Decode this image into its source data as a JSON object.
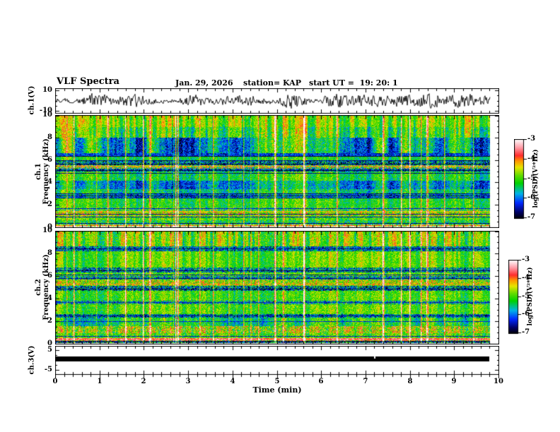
{
  "header": {
    "title": "VLF Spectra",
    "date": "Jan. 29, 2026",
    "station": "station= KAP",
    "start_ut": "start UT =  19: 20: 1"
  },
  "axes": {
    "xlabel": "Time (min)",
    "xticks": [
      0,
      1,
      2,
      3,
      4,
      5,
      6,
      7,
      8,
      9,
      10
    ],
    "x_minor_step_min": 0.2
  },
  "colormap": {
    "range": [
      -7,
      -3
    ],
    "stops": [
      [
        0,
        "#000000"
      ],
      [
        0.08,
        "#000060"
      ],
      [
        0.2,
        "#0028ff"
      ],
      [
        0.32,
        "#00b4e6"
      ],
      [
        0.45,
        "#00d200"
      ],
      [
        0.55,
        "#64dc00"
      ],
      [
        0.65,
        "#e6e600"
      ],
      [
        0.73,
        "#ff9600"
      ],
      [
        0.8,
        "#ff2d2d"
      ],
      [
        0.9,
        "#ff9ba6"
      ],
      [
        1,
        "#fffafa"
      ]
    ]
  },
  "chart_data": [
    {
      "panel": "ch1-waveform",
      "type": "line",
      "ylabel": "ch.1(V)",
      "ylim": [
        -10,
        10
      ],
      "yticks": [
        10,
        -10
      ],
      "x_range_min": [
        0,
        10
      ],
      "signal": {
        "kind": "broadband-noise",
        "typ_amplitude_V": 5,
        "duration_min": 9.8
      }
    },
    {
      "panel": "ch1-spectrogram",
      "type": "heatmap",
      "ylabel_lines": [
        "ch.1",
        "Frequency (kHz)"
      ],
      "ylim": [
        0,
        10
      ],
      "yticks": [
        0,
        2,
        4,
        6,
        8,
        10
      ],
      "duration_min": 9.8,
      "colorbar": {
        "label": "log(PSD)(V²*Hz)",
        "ticks": [
          -3,
          -4,
          -5,
          -6,
          -7
        ],
        "range": [
          -7,
          -3
        ]
      },
      "bands": [
        [
          9.0,
          10.0,
          -4.75,
          0.45,
          0.85,
          0.0
        ],
        [
          8.0,
          9.0,
          -4.95,
          0.55,
          0.95,
          0.2
        ],
        [
          6.6,
          8.0,
          -5.35,
          0.6,
          0.5,
          0.9
        ],
        [
          6.28,
          6.6,
          -6.2,
          0.5,
          0.2,
          0.0
        ],
        [
          5.95,
          6.28,
          -5.15,
          0.5,
          0.3,
          0.2
        ],
        [
          5.55,
          5.95,
          -5.9,
          1.1,
          0.2,
          0.0
        ],
        [
          5.25,
          5.55,
          -4.8,
          1.3,
          0.2,
          0.0
        ],
        [
          4.95,
          5.25,
          -6.1,
          0.9,
          0.2,
          0.0
        ],
        [
          4.15,
          4.95,
          -5.1,
          0.5,
          0.45,
          0.3
        ],
        [
          3.35,
          4.15,
          -5.65,
          0.55,
          0.4,
          0.5
        ],
        [
          2.95,
          3.35,
          -5.25,
          0.6,
          0.4,
          0.3
        ],
        [
          2.55,
          2.95,
          -5.8,
          0.75,
          0.3,
          0.3
        ],
        [
          1.75,
          2.55,
          -5.05,
          0.5,
          0.4,
          0.2
        ],
        [
          1.35,
          1.75,
          -5.15,
          0.85,
          0.3,
          0.0
        ],
        [
          0.95,
          1.35,
          -4.6,
          0.8,
          0.3,
          0.0
        ],
        [
          0.55,
          0.95,
          -4.95,
          0.6,
          0.3,
          0.0
        ],
        [
          0.22,
          0.55,
          -5.25,
          0.65,
          0.3,
          0.0
        ],
        [
          0.0,
          0.22,
          -4.35,
          1.4,
          0.1,
          0.0
        ]
      ],
      "lines": [
        [
          6.4,
          -6.8
        ],
        [
          6.0,
          -6.6
        ],
        [
          5.7,
          -6.9
        ],
        [
          5.45,
          -4.15
        ],
        [
          5.1,
          -6.8
        ],
        [
          4.85,
          -6.6
        ],
        [
          3.0,
          -6.6
        ],
        [
          2.8,
          -6.7
        ],
        [
          2.6,
          -6.5
        ],
        [
          1.65,
          -6.4
        ],
        [
          1.4,
          -4.3
        ],
        [
          1.15,
          -6.5
        ],
        [
          0.9,
          -6.4
        ],
        [
          0.35,
          -6.6
        ],
        [
          0.12,
          -4.1
        ]
      ]
    },
    {
      "panel": "ch2-spectrogram",
      "type": "heatmap",
      "ylabel_lines": [
        "ch.2",
        "Frequency (kHz)"
      ],
      "ylim": [
        0,
        10
      ],
      "yticks": [
        0,
        2,
        4,
        6,
        8,
        10
      ],
      "duration_min": 9.8,
      "colorbar": {
        "label": "log(PSD)(V²*Hz)",
        "ticks": [
          -3,
          -4,
          -5,
          -6,
          -7
        ],
        "range": [
          -7,
          -3
        ]
      },
      "bands": [
        [
          8.65,
          10.0,
          -4.8,
          0.55,
          0.95,
          0.0
        ],
        [
          8.25,
          8.65,
          -5.9,
          0.9,
          0.3,
          0.0
        ],
        [
          6.75,
          8.25,
          -4.85,
          0.45,
          0.5,
          0.25
        ],
        [
          6.35,
          6.75,
          -5.75,
          1.0,
          0.3,
          0.0
        ],
        [
          6.0,
          6.35,
          -4.95,
          0.6,
          0.3,
          0.0
        ],
        [
          5.7,
          6.0,
          -5.7,
          1.0,
          0.25,
          0.0
        ],
        [
          5.1,
          5.7,
          -4.65,
          0.85,
          0.3,
          0.0
        ],
        [
          4.7,
          5.1,
          -5.9,
          1.15,
          0.25,
          0.0
        ],
        [
          3.8,
          4.7,
          -4.95,
          0.5,
          0.4,
          0.2
        ],
        [
          3.5,
          3.8,
          -5.55,
          1.0,
          0.3,
          0.0
        ],
        [
          2.6,
          3.5,
          -4.9,
          0.5,
          0.4,
          0.2
        ],
        [
          2.3,
          2.6,
          -5.95,
          0.9,
          0.3,
          0.0
        ],
        [
          1.5,
          2.3,
          -5.15,
          0.6,
          0.4,
          0.45
        ],
        [
          0.9,
          1.5,
          -4.65,
          0.85,
          0.75,
          0.0
        ],
        [
          0.45,
          0.9,
          -4.95,
          0.6,
          0.4,
          0.0
        ],
        [
          0.25,
          0.45,
          -3.65,
          0.45,
          0.2,
          0.0
        ],
        [
          0.1,
          0.25,
          -4.6,
          1.2,
          0.2,
          0.0
        ],
        [
          0.0,
          0.1,
          -6.1,
          1.5,
          0.1,
          0.0
        ]
      ],
      "lines": [
        [
          8.45,
          -6.6
        ],
        [
          6.55,
          -6.7
        ],
        [
          6.15,
          -6.5
        ],
        [
          5.85,
          -6.6
        ],
        [
          5.3,
          -4.1
        ],
        [
          4.9,
          -6.7
        ],
        [
          3.65,
          -6.4
        ],
        [
          2.45,
          -6.6
        ],
        [
          1.95,
          -6.3
        ],
        [
          0.65,
          -6.4
        ],
        [
          0.18,
          -6.8
        ]
      ]
    },
    {
      "panel": "ch3-level",
      "type": "line",
      "ylabel": "ch.3(V)",
      "ylim": [
        -5,
        5
      ],
      "yticks": [
        5,
        -5
      ],
      "bar": {
        "x_from_min": 0,
        "x_to_min": 9.8,
        "v_top": 1.8,
        "v_bottom": -0.55,
        "gap_min": 7.2
      }
    }
  ]
}
